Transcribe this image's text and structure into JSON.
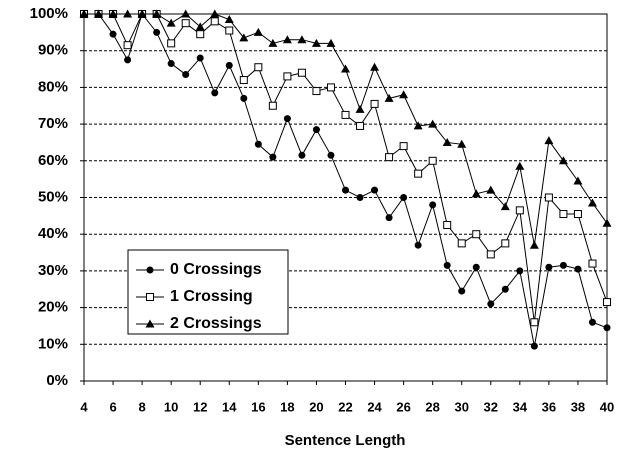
{
  "chart_data": {
    "type": "line",
    "xlabel": "Sentence Length",
    "x": [
      4,
      5,
      6,
      7,
      8,
      9,
      10,
      11,
      12,
      13,
      14,
      15,
      16,
      17,
      18,
      19,
      20,
      21,
      22,
      23,
      24,
      25,
      26,
      27,
      28,
      29,
      30,
      31,
      32,
      33,
      34,
      35,
      36,
      37,
      38,
      39,
      40
    ],
    "xlim": [
      4,
      40
    ],
    "xticks": [
      4,
      6,
      8,
      10,
      12,
      14,
      16,
      18,
      20,
      22,
      24,
      26,
      28,
      30,
      32,
      34,
      36,
      38,
      40
    ],
    "ylim": [
      0,
      100
    ],
    "yticks": [
      {
        "value": 0,
        "label": "0%"
      },
      {
        "value": 10,
        "label": "10%"
      },
      {
        "value": 20,
        "label": "20%"
      },
      {
        "value": 30,
        "label": "30%"
      },
      {
        "value": 40,
        "label": "40%"
      },
      {
        "value": 50,
        "label": "50%"
      },
      {
        "value": 60,
        "label": "60%"
      },
      {
        "value": 70,
        "label": "70%"
      },
      {
        "value": 80,
        "label": "80%"
      },
      {
        "value": 90,
        "label": "90%"
      },
      {
        "value": 100,
        "label": "100%"
      }
    ],
    "grid": true,
    "legend": "lower left",
    "series": [
      {
        "name": "0 Crossings",
        "color": "#000000",
        "marker": "circle",
        "values": [
          100,
          100,
          94.5,
          87.5,
          100,
          95,
          86.5,
          83.5,
          88,
          78.5,
          86,
          77,
          64.5,
          61,
          71.5,
          61.5,
          68.5,
          61.5,
          52,
          50,
          52,
          44.5,
          50,
          37,
          48,
          31.5,
          24.5,
          31,
          21,
          25,
          30,
          9.5,
          31,
          31.5,
          30.5,
          16,
          14.5
        ]
      },
      {
        "name": "1 Crossing",
        "color": "#000000",
        "marker": "square",
        "values": [
          100,
          100,
          100,
          91.5,
          100,
          100,
          92,
          97.5,
          94.5,
          98,
          95.5,
          82,
          85.5,
          75,
          83,
          84,
          79,
          80,
          72.5,
          69.5,
          75.5,
          61,
          64,
          56.5,
          60,
          42.5,
          37.5,
          40,
          34.5,
          37.5,
          46.5,
          16,
          50,
          45.5,
          45.5,
          32,
          21.5
        ]
      },
      {
        "name": "2 Crossings",
        "color": "#000000",
        "marker": "triangle",
        "values": [
          100,
          100,
          100,
          100,
          100,
          100,
          97.5,
          100,
          96.5,
          100,
          98.5,
          93.5,
          95,
          92,
          93,
          93,
          92,
          92,
          85,
          74,
          85.5,
          77,
          78,
          69.5,
          70,
          65,
          64.5,
          51,
          52,
          47.5,
          58.5,
          37,
          65.5,
          60,
          54.5,
          48.5,
          43
        ]
      }
    ]
  }
}
